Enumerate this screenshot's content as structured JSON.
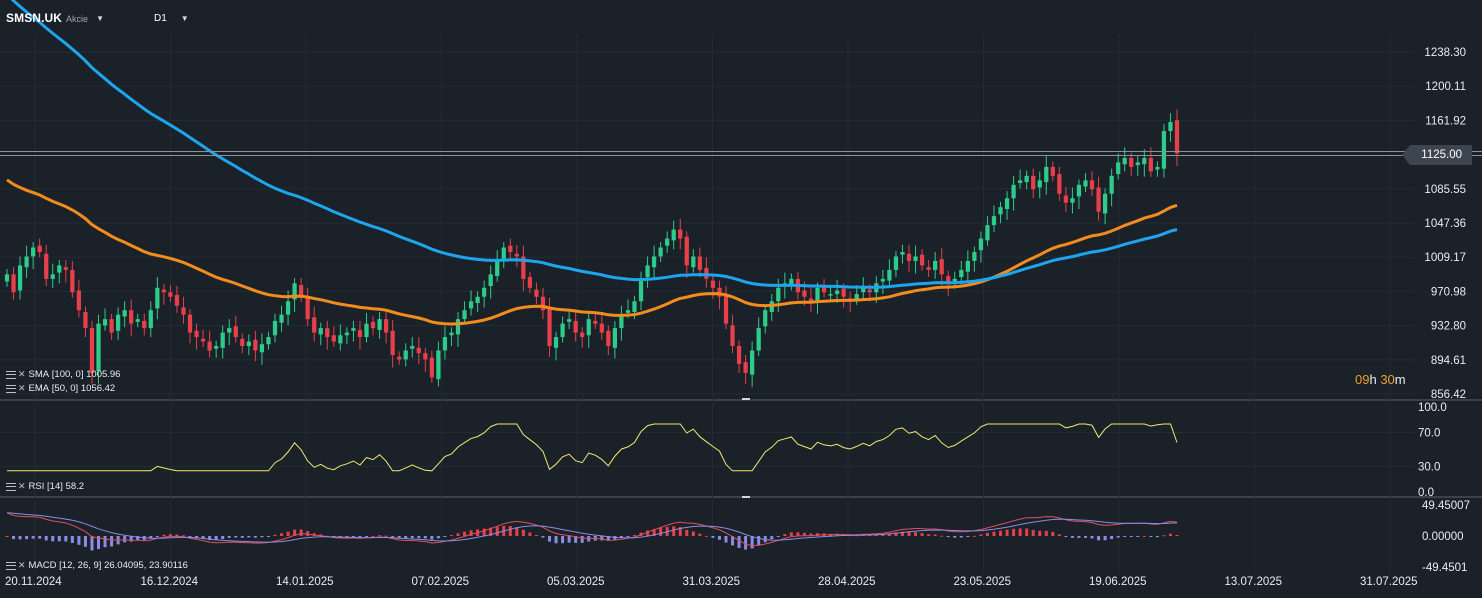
{
  "header": {
    "symbol": "SMSN.UK",
    "instrument_type": "Akcie",
    "timeframe": "D1",
    "symbol_caret_icon": "caret-down-icon",
    "timeframe_caret_icon": "caret-down-icon"
  },
  "countdown": {
    "hours": "09",
    "h_unit": "h",
    "minutes": "30",
    "m_unit": "m"
  },
  "colors": {
    "background": "#1a2129",
    "bull": "#2ecc8a",
    "bear": "#e8404a",
    "sma": "#1ea5ee",
    "ema": "#f28c1c",
    "rsi": "#f0ea6c",
    "macd_line": "#e0505a",
    "signal_line": "#8c8ce6",
    "hist_pos": "#e8404a",
    "hist_neg": "#8c8ce6",
    "countdown": "#f0a030"
  },
  "price_axis": {
    "labels": [
      "1238.30",
      "1200.11",
      "1161.92",
      "1125.00",
      "1085.55",
      "1047.36",
      "1009.17",
      "970.98",
      "932.80",
      "894.61",
      "856.42"
    ],
    "current_price": "1125.00"
  },
  "rsi_axis": {
    "labels": [
      "100.0",
      "70.0",
      "30.0",
      "0.0"
    ]
  },
  "macd_axis": {
    "labels": [
      "49.45007",
      "0.00000",
      "-49.4501"
    ]
  },
  "time_axis": {
    "labels": [
      "20.11.2024",
      "16.12.2024",
      "14.01.2025",
      "07.02.2025",
      "05.03.2025",
      "31.03.2025",
      "28.04.2025",
      "23.05.2025",
      "19.06.2025",
      "13.07.2025",
      "31.07.2025"
    ]
  },
  "studies": {
    "sma": {
      "name": "SMA",
      "params": "[100, 0]",
      "value": "1005.96"
    },
    "ema": {
      "name": "EMA",
      "params": "[50, 0]",
      "value": "1056.42"
    },
    "rsi": {
      "name": "RSI",
      "params": "[14]",
      "value": "58.2"
    },
    "macd": {
      "name": "MACD",
      "params": "[12, 26, 9]",
      "value1": "26.04095,",
      "value2": "23.90116"
    }
  },
  "chart_data": {
    "type": "candlestick",
    "symbol": "SMSN.UK",
    "timeframe": "D1",
    "x_range": [
      "20.11.2024",
      "31.07.2025"
    ],
    "ylim": [
      856.42,
      1238.3
    ],
    "last_price": 1125.0,
    "closes": [
      990,
      970,
      1000,
      1010,
      1020,
      1015,
      985,
      990,
      1000,
      995,
      970,
      950,
      930,
      880,
      935,
      940,
      925,
      945,
      950,
      935,
      940,
      930,
      950,
      975,
      970,
      965,
      955,
      945,
      925,
      920,
      915,
      905,
      910,
      925,
      930,
      920,
      910,
      915,
      905,
      912,
      920,
      938,
      945,
      960,
      980,
      965,
      940,
      925,
      930,
      920,
      915,
      922,
      925,
      930,
      920,
      935,
      930,
      940,
      925,
      900,
      895,
      905,
      910,
      902,
      895,
      875,
      905,
      920,
      925,
      940,
      950,
      960,
      965,
      975,
      990,
      1005,
      1020,
      1015,
      1010,
      985,
      975,
      965,
      950,
      910,
      920,
      935,
      940,
      925,
      920,
      940,
      935,
      925,
      910,
      930,
      945,
      950,
      960,
      985,
      1000,
      1010,
      1020,
      1030,
      1040,
      1030,
      1000,
      1010,
      995,
      985,
      975,
      965,
      935,
      910,
      890,
      880,
      905,
      930,
      950,
      960,
      975,
      980,
      985,
      970,
      965,
      960,
      975,
      970,
      968,
      972,
      965,
      962,
      968,
      975,
      970,
      980,
      985,
      995,
      1010,
      1015,
      1005,
      1010,
      1000,
      995,
      1005,
      990,
      980,
      985,
      995,
      1005,
      1015,
      1030,
      1045,
      1055,
      1065,
      1075,
      1090,
      1095,
      1100,
      1085,
      1095,
      1110,
      1100,
      1080,
      1070,
      1075,
      1090,
      1095,
      1085,
      1060,
      1080,
      1100,
      1115,
      1120,
      1110,
      1115,
      1120,
      1105,
      1110,
      1150,
      1160,
      1125
    ],
    "sma_100_last": 1005.96,
    "ema_50_last": 1056.42,
    "rsi_14_last": 58.2,
    "macd_last": 26.04095,
    "macd_signal_last": 23.90116
  }
}
